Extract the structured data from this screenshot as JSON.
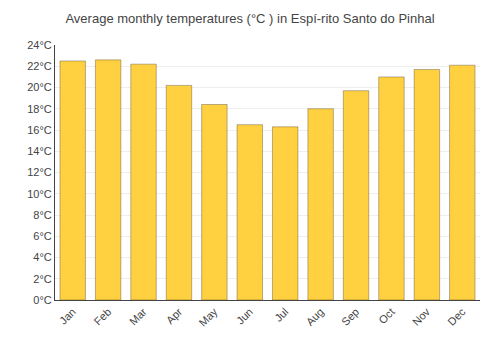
{
  "chart_data": {
    "type": "bar",
    "title": "Average monthly temperatures (°C ) in Espí-rito Santo do Pinhal",
    "categories": [
      "Jan",
      "Feb",
      "Mar",
      "Apr",
      "May",
      "Jun",
      "Jul",
      "Aug",
      "Sep",
      "Oct",
      "Nov",
      "Dec"
    ],
    "values": [
      22.5,
      22.6,
      22.2,
      20.2,
      18.4,
      16.5,
      16.3,
      18.0,
      19.7,
      21.0,
      21.7,
      22.1
    ],
    "color": "#FFD040",
    "ylim": [
      0,
      24
    ],
    "yticks": [
      {
        "value": 0,
        "label": "0°C"
      },
      {
        "value": 2,
        "label": "2°C"
      },
      {
        "value": 4,
        "label": "4°C"
      },
      {
        "value": 6,
        "label": "6°C"
      },
      {
        "value": 8,
        "label": "8°C"
      },
      {
        "value": 10,
        "label": "10°C"
      },
      {
        "value": 12,
        "label": "12°C"
      },
      {
        "value": 14,
        "label": "14°C"
      },
      {
        "value": 16,
        "label": "16°C"
      },
      {
        "value": 18,
        "label": "18°C"
      },
      {
        "value": 20,
        "label": "20°C"
      },
      {
        "value": 22,
        "label": "22°C"
      },
      {
        "value": 24,
        "label": "24°C"
      }
    ],
    "grid": true
  }
}
